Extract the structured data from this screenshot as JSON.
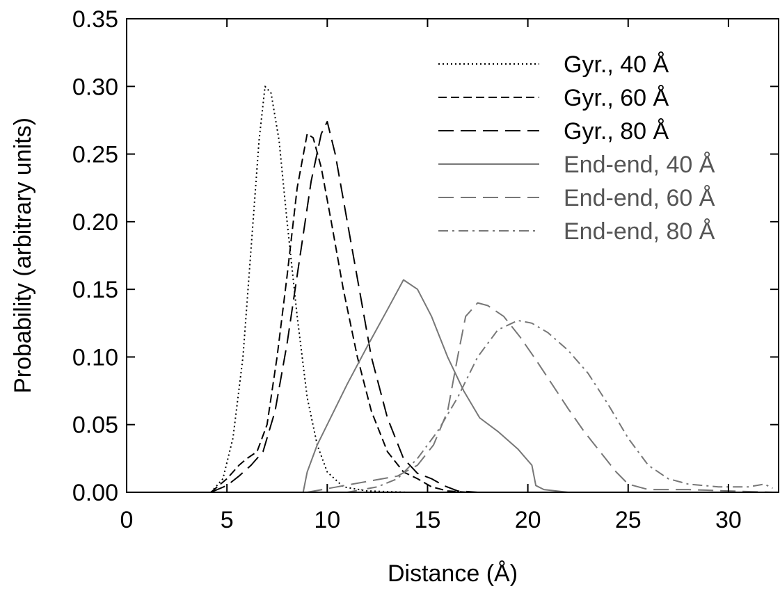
{
  "chart_data": {
    "type": "line",
    "title": "",
    "xlabel": "Distance (Å)",
    "ylabel": "Probability (arbitrary units)",
    "xlim": [
      0,
      32.5
    ],
    "ylim": [
      0,
      0.35
    ],
    "xticks": [
      0,
      5,
      10,
      15,
      20,
      25,
      30
    ],
    "xtick_labels": [
      "0",
      "5",
      "10",
      "15",
      "20",
      "25",
      "30"
    ],
    "yticks": [
      0,
      0.05,
      0.1,
      0.15,
      0.2,
      0.25,
      0.3,
      0.35
    ],
    "ytick_labels": [
      "0.00",
      "0.05",
      "0.10",
      "0.15",
      "0.20",
      "0.25",
      "0.30",
      "0.35"
    ],
    "grid": false,
    "legend_position": "top-right",
    "series": [
      {
        "name": "Gyr., 40 Å",
        "color": "#000000",
        "dash": "dotted",
        "points": [
          [
            4.2,
            0
          ],
          [
            4.8,
            0.01
          ],
          [
            5.3,
            0.04
          ],
          [
            5.8,
            0.1
          ],
          [
            6.2,
            0.18
          ],
          [
            6.6,
            0.26
          ],
          [
            6.9,
            0.3
          ],
          [
            7.2,
            0.295
          ],
          [
            7.6,
            0.26
          ],
          [
            8.0,
            0.2
          ],
          [
            8.5,
            0.13
          ],
          [
            9.0,
            0.07
          ],
          [
            9.5,
            0.035
          ],
          [
            10.0,
            0.015
          ],
          [
            10.8,
            0.004
          ],
          [
            12.0,
            0.001
          ],
          [
            14.0,
            0.0
          ]
        ]
      },
      {
        "name": "Gyr., 60 Å",
        "color": "#000000",
        "dash": "medium",
        "points": [
          [
            4.2,
            0
          ],
          [
            5.0,
            0.01
          ],
          [
            5.6,
            0.02
          ],
          [
            6.0,
            0.025
          ],
          [
            6.5,
            0.03
          ],
          [
            7.0,
            0.05
          ],
          [
            7.5,
            0.1
          ],
          [
            8.0,
            0.16
          ],
          [
            8.5,
            0.225
          ],
          [
            9.0,
            0.265
          ],
          [
            9.3,
            0.262
          ],
          [
            9.7,
            0.24
          ],
          [
            10.2,
            0.2
          ],
          [
            10.8,
            0.15
          ],
          [
            11.5,
            0.1
          ],
          [
            12.2,
            0.06
          ],
          [
            13.0,
            0.03
          ],
          [
            13.8,
            0.015
          ],
          [
            14.5,
            0.01
          ],
          [
            15.2,
            0.004
          ],
          [
            16.0,
            0.001
          ],
          [
            17.0,
            0
          ]
        ]
      },
      {
        "name": "Gyr., 80 Å",
        "color": "#000000",
        "dash": "long",
        "points": [
          [
            4.2,
            0
          ],
          [
            5.0,
            0.005
          ],
          [
            5.6,
            0.012
          ],
          [
            6.2,
            0.02
          ],
          [
            6.8,
            0.03
          ],
          [
            7.4,
            0.06
          ],
          [
            8.0,
            0.11
          ],
          [
            8.6,
            0.17
          ],
          [
            9.2,
            0.23
          ],
          [
            9.7,
            0.265
          ],
          [
            10.0,
            0.274
          ],
          [
            10.4,
            0.25
          ],
          [
            11.0,
            0.2
          ],
          [
            11.6,
            0.15
          ],
          [
            12.2,
            0.1
          ],
          [
            13.0,
            0.055
          ],
          [
            13.8,
            0.025
          ],
          [
            14.5,
            0.014
          ],
          [
            15.2,
            0.01
          ],
          [
            15.8,
            0.005
          ],
          [
            16.5,
            0.001
          ],
          [
            17.5,
            0
          ]
        ]
      },
      {
        "name": "End-end, 40 Å",
        "color": "#777777",
        "dash": "solid",
        "points": [
          [
            8.8,
            0
          ],
          [
            9.0,
            0.015
          ],
          [
            9.5,
            0.035
          ],
          [
            10.0,
            0.05
          ],
          [
            11.0,
            0.08
          ],
          [
            12.0,
            0.108
          ],
          [
            13.0,
            0.135
          ],
          [
            13.8,
            0.157
          ],
          [
            14.5,
            0.15
          ],
          [
            15.2,
            0.13
          ],
          [
            16.0,
            0.1
          ],
          [
            16.8,
            0.075
          ],
          [
            17.6,
            0.055
          ],
          [
            18.5,
            0.045
          ],
          [
            19.5,
            0.032
          ],
          [
            20.2,
            0.02
          ],
          [
            20.4,
            0.005
          ],
          [
            20.8,
            0.002
          ],
          [
            22.0,
            0
          ],
          [
            32.2,
            0
          ]
        ]
      },
      {
        "name": "End-end, 60 Å",
        "color": "#777777",
        "dash": "long",
        "points": [
          [
            9.0,
            0
          ],
          [
            10.5,
            0.004
          ],
          [
            12.0,
            0.008
          ],
          [
            13.5,
            0.012
          ],
          [
            14.5,
            0.02
          ],
          [
            15.3,
            0.035
          ],
          [
            16.0,
            0.06
          ],
          [
            16.5,
            0.1
          ],
          [
            16.9,
            0.13
          ],
          [
            17.5,
            0.14
          ],
          [
            18.0,
            0.138
          ],
          [
            18.8,
            0.13
          ],
          [
            19.6,
            0.115
          ],
          [
            20.4,
            0.098
          ],
          [
            21.2,
            0.08
          ],
          [
            22.0,
            0.062
          ],
          [
            22.8,
            0.045
          ],
          [
            23.6,
            0.03
          ],
          [
            24.4,
            0.015
          ],
          [
            25.0,
            0.006
          ],
          [
            26.0,
            0.002
          ],
          [
            28.0,
            0.002
          ],
          [
            30.0,
            0.001
          ],
          [
            32.2,
            0.0
          ]
        ]
      },
      {
        "name": "End-end, 80 Å",
        "color": "#777777",
        "dash": "dashdot",
        "points": [
          [
            11.0,
            0
          ],
          [
            12.5,
            0.004
          ],
          [
            13.5,
            0.01
          ],
          [
            14.5,
            0.025
          ],
          [
            15.5,
            0.045
          ],
          [
            16.5,
            0.07
          ],
          [
            17.5,
            0.1
          ],
          [
            18.5,
            0.12
          ],
          [
            19.5,
            0.127
          ],
          [
            20.2,
            0.125
          ],
          [
            21.0,
            0.118
          ],
          [
            22.0,
            0.105
          ],
          [
            23.0,
            0.088
          ],
          [
            24.0,
            0.065
          ],
          [
            25.0,
            0.04
          ],
          [
            26.0,
            0.02
          ],
          [
            27.0,
            0.01
          ],
          [
            28.0,
            0.006
          ],
          [
            29.5,
            0.004
          ],
          [
            31.0,
            0.004
          ],
          [
            31.8,
            0.006
          ],
          [
            32.2,
            0.003
          ]
        ]
      }
    ]
  }
}
